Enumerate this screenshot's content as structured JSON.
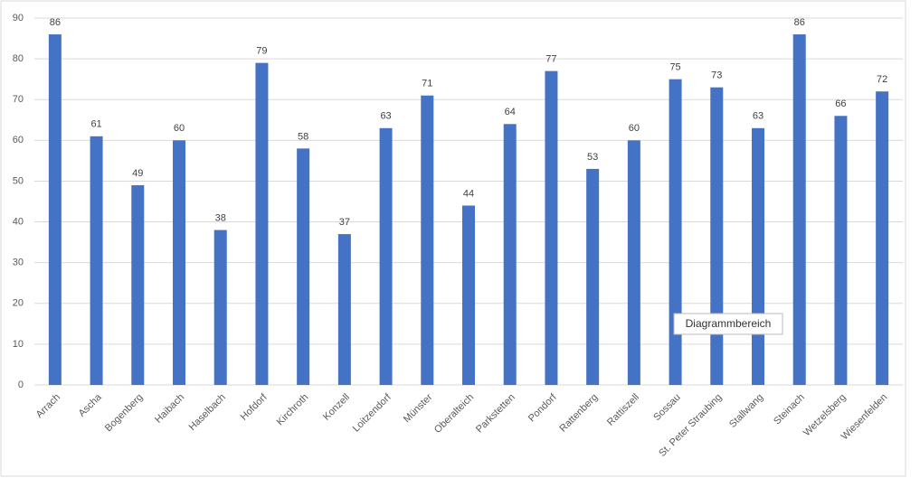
{
  "chart_data": {
    "type": "bar",
    "categories": [
      "Arrach",
      "Ascha",
      "Bogenberg",
      "Haibach",
      "Haselbach",
      "Hofdorf",
      "Kirchroth",
      "Konzell",
      "Loitzendorf",
      "Münster",
      "Oberalteich",
      "Parkstetten",
      "Pondorf",
      "Rattenberg",
      "Rattiszell",
      "Sossau",
      "St. Peter Straubing",
      "Stallwang",
      "Steinach",
      "Wetzelsberg",
      "Wiesenfelden"
    ],
    "values": [
      86,
      61,
      49,
      60,
      38,
      79,
      58,
      37,
      63,
      71,
      44,
      64,
      77,
      53,
      60,
      75,
      73,
      63,
      86,
      66,
      72
    ],
    "color": "#4472c4",
    "ylim": [
      0,
      90
    ],
    "yticks": [
      0,
      10,
      20,
      30,
      40,
      50,
      60,
      70,
      80,
      90
    ],
    "grid": true,
    "tooltip": "Diagrammbereich"
  }
}
